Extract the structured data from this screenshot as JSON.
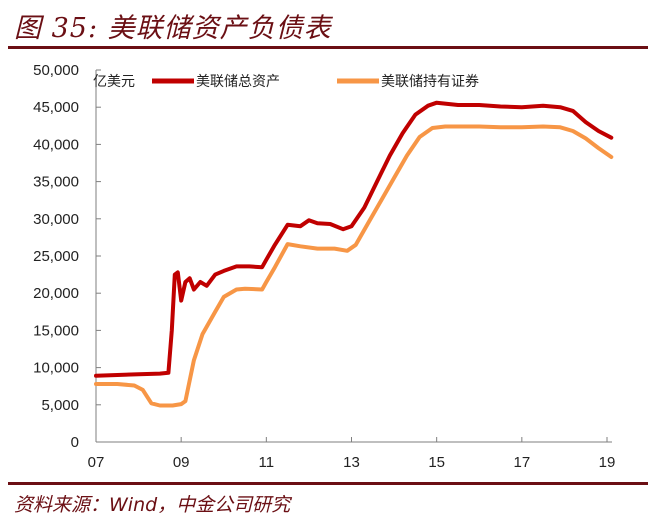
{
  "header": {
    "title": "图 35: 美联储资产负债表"
  },
  "footer": {
    "source": "资料来源：Wind，中金公司研究"
  },
  "colors": {
    "brand": "#6b0f14",
    "total_assets": "#c00000",
    "securities": "#f79646",
    "axis": "#7f7f7f"
  },
  "chart_data": {
    "type": "line",
    "title": "美联储资产负债表",
    "xlabel": "",
    "ylabel": "亿美元",
    "unit_label": "亿美元",
    "ylim": [
      0,
      50000
    ],
    "xlim": [
      2007,
      2019.1
    ],
    "y_ticks": [
      0,
      5000,
      10000,
      15000,
      20000,
      25000,
      30000,
      35000,
      40000,
      45000,
      50000
    ],
    "y_tick_labels": [
      "0",
      "5,000",
      "10,000",
      "15,000",
      "20,000",
      "25,000",
      "30,000",
      "35,000",
      "40,000",
      "45,000",
      "50,000"
    ],
    "x_ticks": [
      2007,
      2009,
      2011,
      2013,
      2015,
      2017,
      2019
    ],
    "x_tick_labels": [
      "07",
      "09",
      "11",
      "13",
      "15",
      "17",
      "19"
    ],
    "grid": false,
    "legend_position": "top",
    "series": [
      {
        "name": "美联储总资产",
        "color": "#c00000",
        "x": [
          2007.0,
          2007.5,
          2008.0,
          2008.5,
          2008.7,
          2008.78,
          2008.85,
          2008.92,
          2009.0,
          2009.1,
          2009.2,
          2009.3,
          2009.45,
          2009.6,
          2009.8,
          2010.0,
          2010.3,
          2010.6,
          2010.9,
          2011.0,
          2011.2,
          2011.5,
          2011.8,
          2012.0,
          2012.2,
          2012.5,
          2012.8,
          2013.0,
          2013.3,
          2013.6,
          2013.9,
          2014.2,
          2014.5,
          2014.8,
          2015.0,
          2015.5,
          2016.0,
          2016.5,
          2017.0,
          2017.5,
          2017.9,
          2018.2,
          2018.5,
          2018.8,
          2019.1
        ],
        "values": [
          8900,
          9000,
          9100,
          9200,
          9300,
          15000,
          22500,
          22800,
          19000,
          21500,
          22000,
          20500,
          21500,
          21000,
          22500,
          23000,
          23600,
          23600,
          23500,
          24500,
          26500,
          29200,
          29000,
          29800,
          29400,
          29300,
          28600,
          29000,
          31500,
          35000,
          38500,
          41500,
          44000,
          45200,
          45600,
          45300,
          45300,
          45100,
          45000,
          45200,
          45000,
          44500,
          43000,
          41800,
          40900
        ]
      },
      {
        "name": "美联储持有证券",
        "color": "#f79646",
        "x": [
          2007.0,
          2007.5,
          2007.9,
          2008.1,
          2008.3,
          2008.5,
          2008.8,
          2009.0,
          2009.1,
          2009.3,
          2009.5,
          2009.8,
          2010.0,
          2010.3,
          2010.5,
          2010.9,
          2011.0,
          2011.2,
          2011.5,
          2011.8,
          2012.2,
          2012.6,
          2012.9,
          2013.1,
          2013.4,
          2013.7,
          2014.0,
          2014.3,
          2014.6,
          2014.9,
          2015.2,
          2015.6,
          2016.0,
          2016.5,
          2017.0,
          2017.5,
          2017.9,
          2018.2,
          2018.5,
          2018.8,
          2019.1
        ],
        "values": [
          7800,
          7800,
          7600,
          7000,
          5200,
          4900,
          4900,
          5100,
          5500,
          11000,
          14500,
          17500,
          19500,
          20500,
          20600,
          20500,
          21500,
          23500,
          26600,
          26300,
          26000,
          26000,
          25700,
          26500,
          29500,
          32500,
          35500,
          38500,
          41000,
          42200,
          42400,
          42400,
          42400,
          42300,
          42300,
          42400,
          42300,
          41800,
          40800,
          39500,
          38300
        ]
      }
    ]
  }
}
